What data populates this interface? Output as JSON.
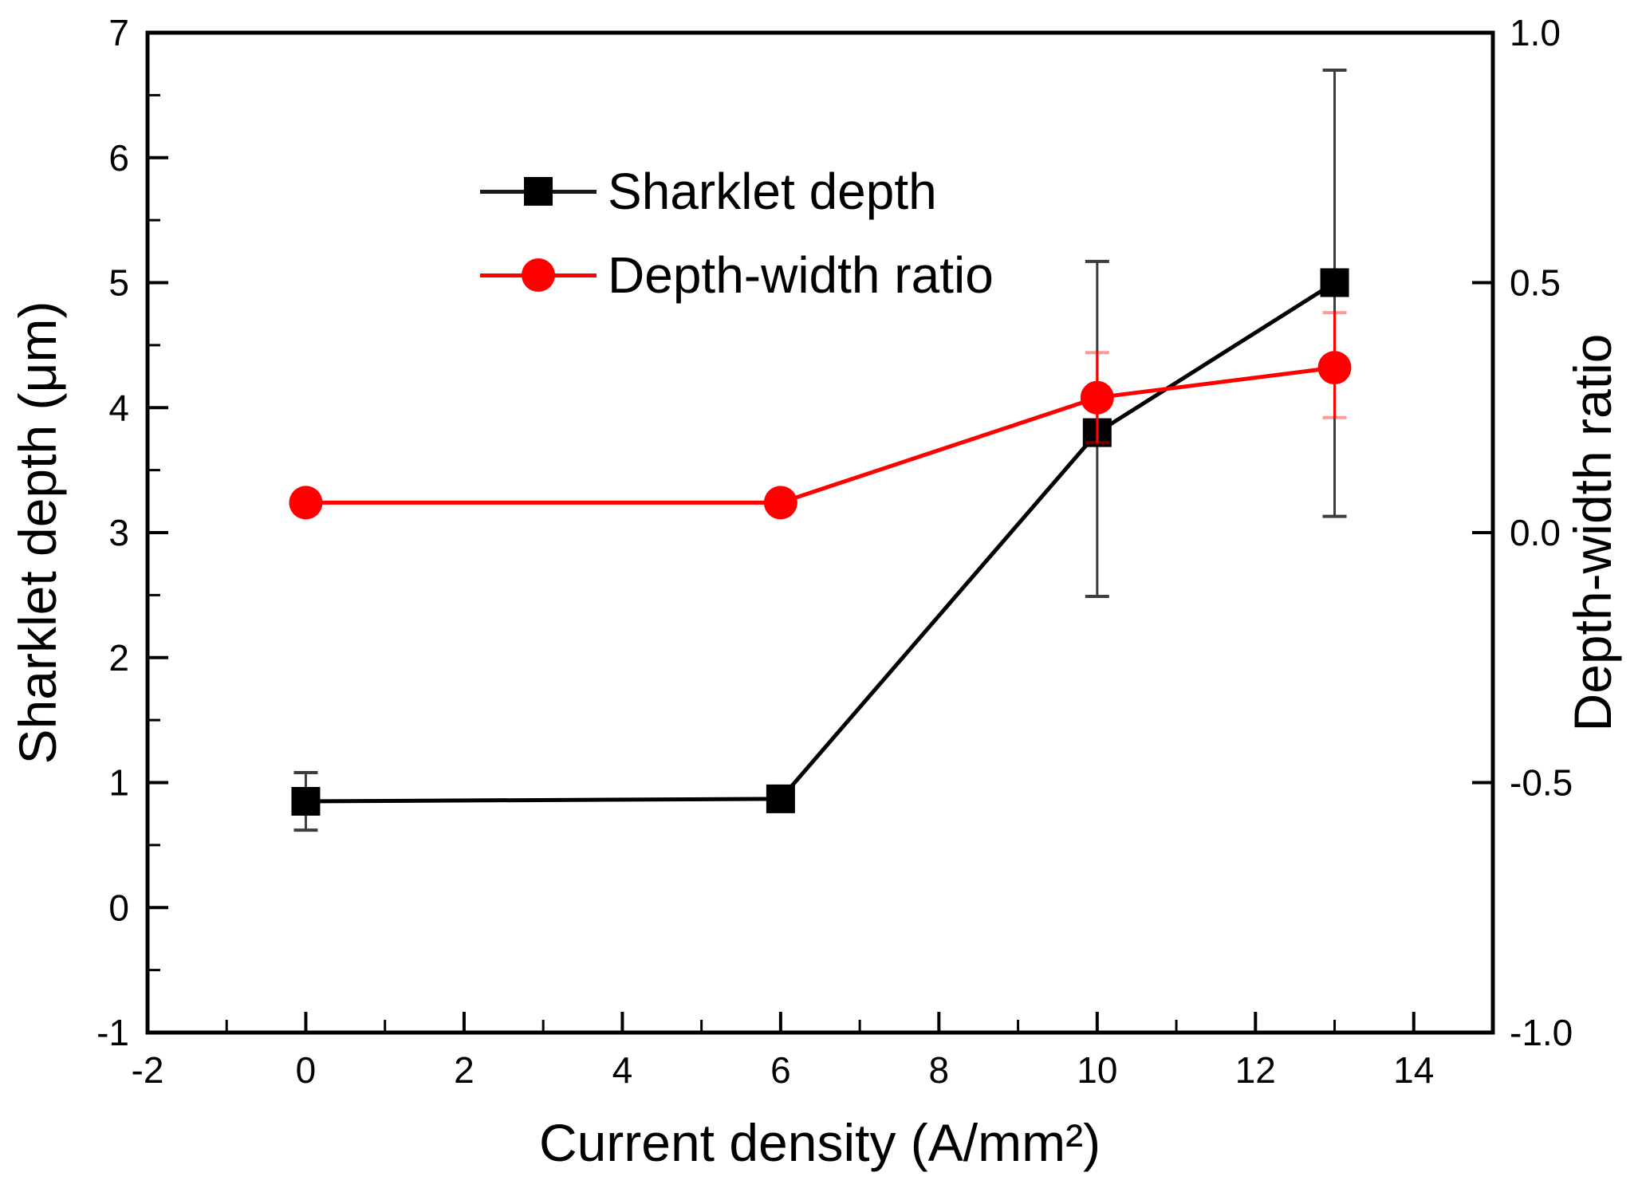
{
  "figure": {
    "background": "#ffffff",
    "x_title": "Current density (A/mm²)",
    "y_left_title": "Sharklet depth (μm)",
    "y_right_title": "Depth-width ratio"
  },
  "legend": {
    "position": "inside-top-left",
    "items": [
      {
        "label": "Sharklet depth",
        "marker": "black-square-on-line",
        "color": "#000000"
      },
      {
        "label": "Depth-width ratio",
        "marker": "red-circle-on-line",
        "color": "#ff0000"
      }
    ]
  },
  "chart_data": {
    "type": "line",
    "title": "",
    "x_axis": {
      "label": "Current density (A/mm²)",
      "min": -2,
      "max": 15,
      "major_ticks": [
        -2,
        0,
        2,
        4,
        6,
        8,
        10,
        12,
        14
      ],
      "major_tick_labels": [
        "-2",
        "0",
        "2",
        "4",
        "6",
        "8",
        "10",
        "12",
        "14"
      ],
      "minor_ticks": [
        -1,
        1,
        3,
        5,
        7,
        9,
        11,
        13
      ]
    },
    "y_axis_left": {
      "label": "Sharklet depth (μm)",
      "min": -1,
      "max": 7,
      "major_ticks": [
        -1,
        0,
        1,
        2,
        3,
        4,
        5,
        6,
        7
      ],
      "major_tick_labels": [
        "-1",
        "0",
        "1",
        "2",
        "3",
        "4",
        "5",
        "6",
        "7"
      ],
      "minor_ticks": [
        -0.5,
        0.5,
        1.5,
        2.5,
        3.5,
        4.5,
        5.5,
        6.5
      ]
    },
    "y_axis_right": {
      "label": "Depth-width ratio",
      "min": -1,
      "max": 1,
      "major_ticks": [
        -1,
        -0.5,
        0,
        0.5,
        1
      ],
      "major_tick_labels": [
        "-1.0",
        "-0.5",
        "0.0",
        "0.5",
        "1.0"
      ]
    },
    "grid": "off",
    "series": [
      {
        "name": "Sharklet depth",
        "axis": "left",
        "color": "#000000",
        "marker": "square",
        "error_stem_color": "#3d3d3d",
        "error_cap_color": "#3d3d3d",
        "points": [
          {
            "x": 0,
            "y": 0.85,
            "err_plus": 0.23,
            "err_minus": 0.23
          },
          {
            "x": 6,
            "y": 0.87,
            "err_plus": 0,
            "err_minus": 0
          },
          {
            "x": 10,
            "y": 3.8,
            "err_plus": 1.37,
            "err_minus": 1.31
          },
          {
            "x": 13,
            "y": 5.0,
            "err_plus": 1.7,
            "err_minus": 1.87
          }
        ]
      },
      {
        "name": "Depth-width ratio",
        "axis": "right",
        "color": "#ff0000",
        "marker": "circle",
        "error_stem_color": "#ff0000",
        "error_cap_color": "rgba(255,0,0,0.40)",
        "points": [
          {
            "x": 0,
            "y": 0.06,
            "err_plus": 0,
            "err_minus": 0
          },
          {
            "x": 6,
            "y": 0.06,
            "err_plus": 0,
            "err_minus": 0
          },
          {
            "x": 10,
            "y": 0.27,
            "err_plus": 0.09,
            "err_minus": 0.09
          },
          {
            "x": 13,
            "y": 0.33,
            "err_plus": 0.11,
            "err_minus": 0.1
          }
        ]
      }
    ]
  }
}
